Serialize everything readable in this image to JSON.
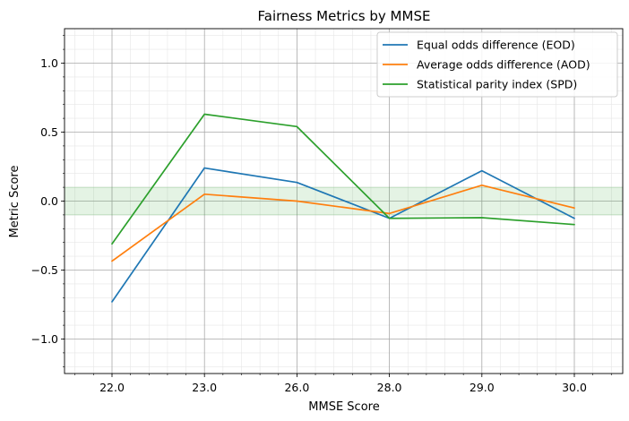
{
  "chart_data": {
    "type": "line",
    "title": "Fairness Metrics by MMSE",
    "xlabel": "MMSE Score",
    "ylabel": "Metric Score",
    "categories": [
      "22.0",
      "23.0",
      "26.0",
      "28.0",
      "29.0",
      "30.0"
    ],
    "ylim": [
      -1.25,
      1.25
    ],
    "yticks": [
      -1.0,
      -0.5,
      0.0,
      0.5,
      1.0
    ],
    "ytick_labels": [
      "−1.0",
      "−0.5",
      "0.0",
      "0.5",
      "1.0"
    ],
    "grid": true,
    "minor_grid": true,
    "legend_position": "top-right",
    "fair_band": {
      "low": -0.1,
      "high": 0.1,
      "color": "#2ca02c"
    },
    "series": [
      {
        "name": "Equal odds difference (EOD)",
        "color": "#1f77b4",
        "values": [
          -0.73,
          0.24,
          0.135,
          -0.125,
          0.22,
          -0.125
        ]
      },
      {
        "name": "Average odds difference (AOD)",
        "color": "#ff7f0e",
        "values": [
          -0.435,
          0.05,
          0.0,
          -0.09,
          0.115,
          -0.05
        ]
      },
      {
        "name": "Statistical parity index (SPD)",
        "color": "#2ca02c",
        "values": [
          -0.31,
          0.63,
          0.54,
          -0.125,
          -0.12,
          -0.17
        ]
      }
    ]
  }
}
